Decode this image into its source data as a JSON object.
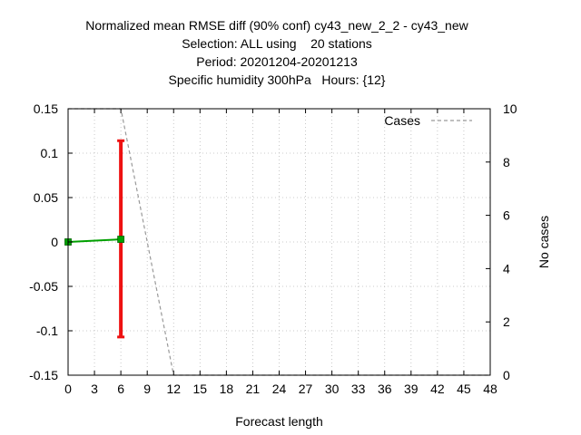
{
  "chart_data": {
    "type": "line",
    "title_lines": [
      "Normalized mean RMSE diff (90% conf) cy43_new_2_2 - cy43_new",
      "Selection: ALL using    20 stations",
      "Period: 20201204-20201213",
      "Specific humidity 300hPa   Hours: {12}"
    ],
    "xlabel": "Forecast length",
    "ylabel": "",
    "y2label": "No cases",
    "xlim": [
      0,
      48
    ],
    "ylim": [
      -0.15,
      0.15
    ],
    "y2lim": [
      0,
      10
    ],
    "x_ticks": [
      0,
      3,
      6,
      9,
      12,
      15,
      18,
      21,
      24,
      27,
      30,
      33,
      36,
      39,
      42,
      45,
      48
    ],
    "y_ticks": [
      "-0.15",
      "-0.1",
      "-0.05",
      "0",
      "0.05",
      "0.1",
      "0.15"
    ],
    "y2_ticks": [
      "0",
      "2",
      "4",
      "6",
      "8",
      "10"
    ],
    "grid": true,
    "legend": {
      "position": "top-right",
      "entries": [
        "Cases"
      ]
    },
    "series": [
      {
        "kind": "diff",
        "color": "#00a000",
        "x": [
          0,
          6
        ],
        "y": [
          0.0,
          0.003
        ]
      },
      {
        "kind": "errorbar",
        "color": "#ee1111",
        "x": [
          6
        ],
        "low": [
          -0.107
        ],
        "high": [
          0.114
        ]
      },
      {
        "name": "Cases",
        "axis": "y2",
        "style": "dashed",
        "color": "#999999",
        "x": [
          0,
          6,
          12,
          48
        ],
        "y": [
          10,
          10,
          0,
          0
        ]
      }
    ]
  }
}
